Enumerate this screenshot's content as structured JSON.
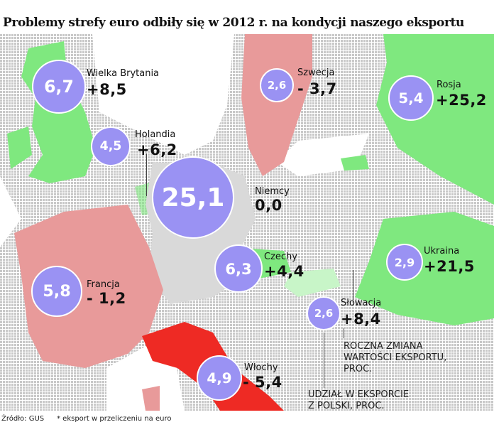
{
  "title": "Problemy strefy euro odbiły się w 2012 r. na kondycji naszego eksportu",
  "colors": {
    "bubble": "#9a92f3",
    "positive": "#7fe87f",
    "negative_light": "#e89a9a",
    "negative_strong": "#ee2a24",
    "neutral": "#d9d9d9",
    "map_dots": "#c8c8c8"
  },
  "countries": [
    {
      "name": "Wielka Brytania",
      "share": "6,7",
      "change": "+8,5",
      "status": "positive"
    },
    {
      "name": "Holandia",
      "share": "4,5",
      "change": "+6,2",
      "status": "positive"
    },
    {
      "name": "Niemcy",
      "share": "25,1",
      "change": "0,0",
      "status": "neutral"
    },
    {
      "name": "Szwecja",
      "share": "2,6",
      "change": "- 3,7",
      "status": "negative"
    },
    {
      "name": "Rosja",
      "share": "5,4",
      "change": "+25,2",
      "status": "positive"
    },
    {
      "name": "Czechy",
      "share": "6,3",
      "change": "+4,4",
      "status": "positive"
    },
    {
      "name": "Ukraina",
      "share": "2,9",
      "change": "+21,5",
      "status": "positive"
    },
    {
      "name": "Francja",
      "share": "5,8",
      "change": "- 1,2",
      "status": "negative"
    },
    {
      "name": "Słowacja",
      "share": "2,6",
      "change": "+8,4",
      "status": "positive"
    },
    {
      "name": "Włochy",
      "share": "4,9",
      "change": "- 5,4",
      "status": "negative"
    }
  ],
  "legend": {
    "change_label": [
      "ROCZNA ZMIANA",
      "WARTOŚCI EKSPORTU,",
      "PROC."
    ],
    "share_label": [
      "UDZIAŁ W EKSPORCIE",
      "Z POLSKI, PROC."
    ]
  },
  "footer": {
    "source": "Źródło: GUS",
    "note": "* eksport w przeliczeniu na euro"
  }
}
